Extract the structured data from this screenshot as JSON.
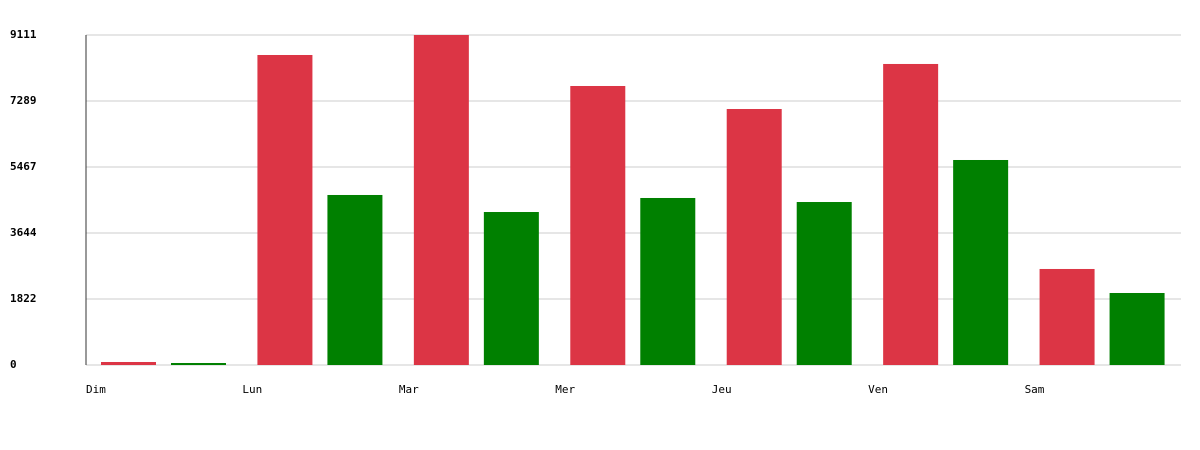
{
  "chart_data": {
    "type": "bar",
    "categories": [
      "Dim",
      "Lun",
      "Mar",
      "Mer",
      "Jeu",
      "Ven",
      "Sam"
    ],
    "series": [
      {
        "color": "#dc3545",
        "values": [
          83,
          8559,
          9111,
          7703,
          7068,
          8311,
          2651
        ]
      },
      {
        "color": "#008000",
        "values": [
          55,
          4694,
          4224,
          4611,
          4500,
          5660,
          1988
        ]
      }
    ],
    "ylim": [
      0,
      9111
    ],
    "yticks": [
      0,
      1822,
      3644,
      5467,
      7289,
      9111
    ],
    "grid": true
  }
}
